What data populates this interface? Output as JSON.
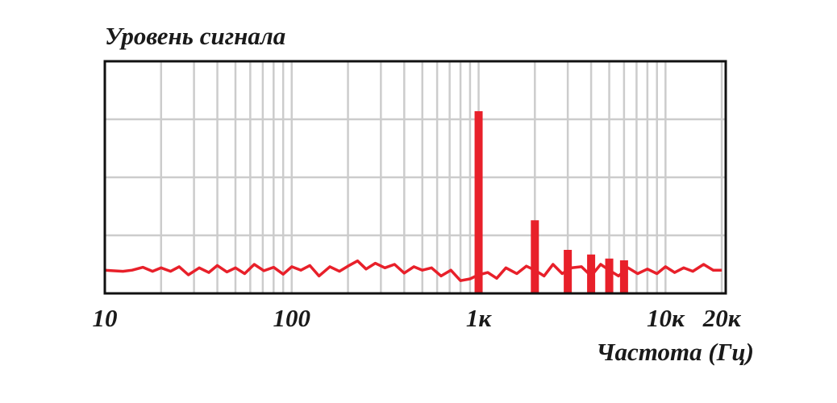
{
  "chart_data": {
    "type": "line",
    "title": "Уровень сигнала",
    "x_label": "Частота (Гц)",
    "xscale": "log",
    "xlim": [
      10,
      21000
    ],
    "ylim": [
      0,
      4
    ],
    "yticks": [
      1,
      2,
      3
    ],
    "xticks": [
      10,
      100,
      {
        "value": 1000,
        "label": "1к"
      },
      {
        "value": 10000,
        "label": "10к"
      },
      {
        "value": 20000,
        "label": "20к"
      }
    ],
    "xminor": [
      20,
      30,
      40,
      50,
      60,
      70,
      80,
      90,
      200,
      300,
      400,
      500,
      600,
      700,
      800,
      900,
      2000,
      3000,
      4000,
      5000,
      6000,
      7000,
      8000,
      9000
    ],
    "grid": true,
    "series": [
      {
        "type": "bar",
        "color": "#e8202a",
        "x": [
          1000,
          2000,
          3000,
          4000,
          5000,
          6000
        ],
        "values": [
          3.14,
          1.26,
          0.75,
          0.67,
          0.6,
          0.57
        ]
      },
      {
        "type": "line",
        "color": "#e8202a",
        "x": [
          10,
          11,
          12.5,
          14,
          16,
          18,
          20,
          22.5,
          25,
          28,
          32,
          36,
          40,
          45,
          50,
          56,
          63,
          71,
          80,
          90,
          100,
          112,
          125,
          140,
          160,
          180,
          200,
          225,
          250,
          280,
          315,
          355,
          400,
          450,
          500,
          560,
          630,
          710,
          800,
          900,
          1000,
          1120,
          1250,
          1400,
          1600,
          1800,
          2000,
          2240,
          2500,
          2800,
          3150,
          3550,
          4000,
          4500,
          5000,
          5600,
          6300,
          7100,
          8000,
          9000,
          10000,
          11200,
          12500,
          14000,
          16000,
          18000,
          20000
        ],
        "values": [
          0.4,
          0.39,
          0.38,
          0.4,
          0.45,
          0.38,
          0.44,
          0.38,
          0.46,
          0.32,
          0.44,
          0.36,
          0.48,
          0.37,
          0.44,
          0.34,
          0.5,
          0.39,
          0.45,
          0.33,
          0.46,
          0.4,
          0.48,
          0.3,
          0.46,
          0.38,
          0.47,
          0.56,
          0.42,
          0.52,
          0.44,
          0.5,
          0.35,
          0.46,
          0.4,
          0.44,
          0.3,
          0.4,
          0.22,
          0.25,
          0.32,
          0.36,
          0.26,
          0.44,
          0.34,
          0.47,
          0.4,
          0.3,
          0.5,
          0.34,
          0.44,
          0.46,
          0.3,
          0.5,
          0.4,
          0.3,
          0.44,
          0.34,
          0.42,
          0.34,
          0.46,
          0.36,
          0.44,
          0.38,
          0.5,
          0.4,
          0.4
        ]
      }
    ]
  }
}
